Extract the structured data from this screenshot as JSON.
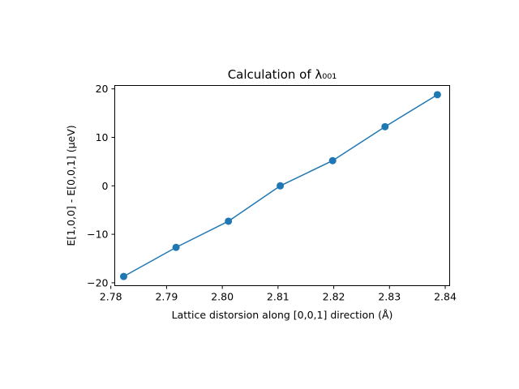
{
  "chart_data": {
    "type": "line",
    "title": "Calculation of λ₀₀₁",
    "xlabel": "Lattice distorsion along [0,0,1] direction (Å)",
    "ylabel": "E[1,0,0] - E[0,0,1] (μeV)",
    "xlim": [
      2.7807,
      2.8408
    ],
    "ylim": [
      -20.6,
      20.7
    ],
    "xticks": [
      2.78,
      2.79,
      2.8,
      2.81,
      2.82,
      2.83,
      2.84
    ],
    "xtick_labels": [
      "2.78",
      "2.79",
      "2.80",
      "2.81",
      "2.82",
      "2.83",
      "2.84"
    ],
    "yticks": [
      -20,
      -10,
      0,
      10,
      20
    ],
    "ytick_labels": [
      "−20",
      "−10",
      "0",
      "10",
      "20"
    ],
    "grid": false,
    "series": [
      {
        "x": [
          2.7823,
          2.7917,
          2.8011,
          2.8104,
          2.8198,
          2.8292,
          2.8386
        ],
        "y": [
          -18.7,
          -12.7,
          -7.3,
          0.0,
          5.2,
          12.2,
          18.8
        ],
        "color": "#1f77b4",
        "marker": "circle"
      }
    ]
  }
}
